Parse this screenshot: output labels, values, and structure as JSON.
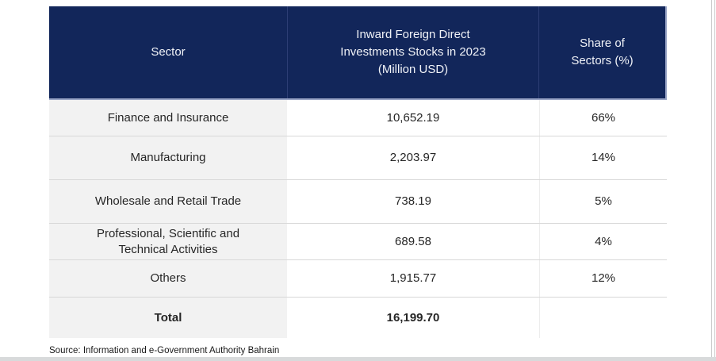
{
  "table": {
    "headers": {
      "sector": "Sector",
      "investments": "Inward Foreign Direct\nInvestments Stocks in 2023\n(Million USD)",
      "share": "Share of\nSectors (%)"
    },
    "rows": [
      {
        "sector": "Finance and Insurance",
        "value": "10,652.19",
        "share": "66%"
      },
      {
        "sector": "Manufacturing",
        "value": "2,203.97",
        "share": "14%"
      },
      {
        "sector": "Wholesale and Retail Trade",
        "value": "738.19",
        "share": "5%"
      },
      {
        "sector": "Professional, Scientific and Technical Activities",
        "value": "689.58",
        "share": "4%"
      },
      {
        "sector": "Others",
        "value": "1,915.77",
        "share": "12%"
      },
      {
        "sector": "Total",
        "value": "16,199.70",
        "share": ""
      }
    ]
  },
  "source_note": "Source: Information and e-Government Authority Bahrain",
  "colors": {
    "header_bg": "#12265A",
    "header_text": "#F0F2F7",
    "first_column_bg": "#F2F2F2",
    "row_divider": "#D8D8D8",
    "header_edge": "#9AA5C6"
  }
}
